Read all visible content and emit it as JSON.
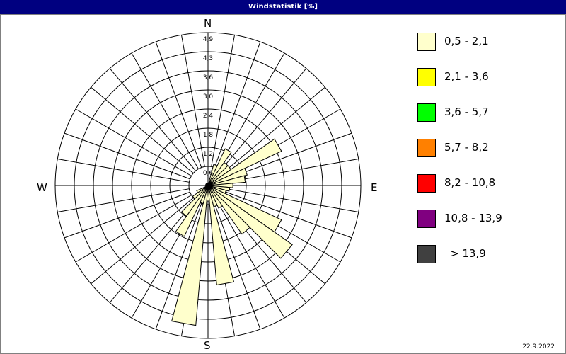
{
  "title": "Windstatistik [%]",
  "date": "22.9.2022",
  "chart_data": {
    "type": "wind-rose",
    "title": "Windstatistik [%]",
    "directions_label": {
      "N": "N",
      "E": "E",
      "S": "S",
      "W": "W"
    },
    "radial_ticks": [
      "0,6",
      "1,2",
      "1,8",
      "2,4",
      "3,0",
      "3,6",
      "4,3",
      "4,9"
    ],
    "rmax": 4.9,
    "sector_width_deg": 10,
    "bearings_deg": [
      0,
      10,
      20,
      30,
      40,
      50,
      60,
      70,
      80,
      90,
      100,
      110,
      120,
      130,
      140,
      150,
      160,
      170,
      180,
      190,
      200,
      210,
      220,
      230,
      240,
      250,
      260,
      270,
      280,
      290,
      300,
      310,
      320,
      330,
      340,
      350
    ],
    "series": [
      {
        "name": "0,5 - 2,1",
        "color": "#ffffcc",
        "values": [
          0,
          0,
          0.7,
          1.3,
          0.9,
          0.9,
          2.6,
          1.3,
          1.2,
          0.8,
          0.7,
          0.6,
          2.6,
          3.3,
          1.9,
          0.8,
          0.7,
          3.2,
          0.5,
          4.5,
          0.6,
          1.8,
          1.2,
          0.6,
          0.4,
          0,
          0,
          0,
          0,
          0,
          0,
          0,
          0,
          0,
          0,
          0
        ]
      }
    ],
    "legend": [
      {
        "label": "0,5 - 2,1",
        "color": "#ffffcc"
      },
      {
        "label": "2,1 - 3,6",
        "color": "#ffff00"
      },
      {
        "label": "3,6 - 5,7",
        "color": "#00ff00"
      },
      {
        "label": "5,7 - 8,2",
        "color": "#ff8000"
      },
      {
        "label": "8,2 - 10,8",
        "color": "#ff0000"
      },
      {
        "label": "10,8 - 13,9",
        "color": "#800080"
      },
      {
        "label": "> 13,9",
        "color": "#404040"
      }
    ],
    "legend_position": "right"
  }
}
